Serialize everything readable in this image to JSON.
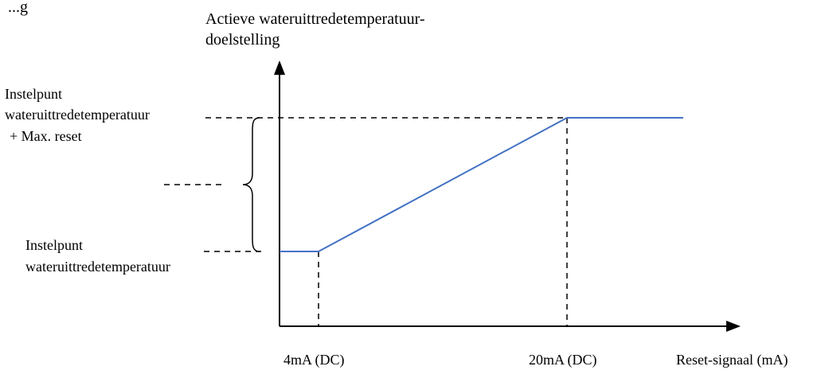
{
  "diagram": {
    "corner_fragment": "...g",
    "y_axis_title": {
      "line1": "Actieve wateruittredetemperatuur-",
      "line2": "doelstelling"
    },
    "upper_label": {
      "line1": "Instelpunt",
      "line2": "wateruittredetemperatuur",
      "line3": "+ Max. reset"
    },
    "lower_label": {
      "line1": "Instelpunt",
      "line2": "wateruittredetemperatuur"
    },
    "x_tick_1": "4mA (DC)",
    "x_tick_2": "20mA (DC)",
    "x_axis_title": "Reset-signaal (mA)"
  },
  "colors": {
    "curve": "#4472c4",
    "ink": "#000000"
  }
}
